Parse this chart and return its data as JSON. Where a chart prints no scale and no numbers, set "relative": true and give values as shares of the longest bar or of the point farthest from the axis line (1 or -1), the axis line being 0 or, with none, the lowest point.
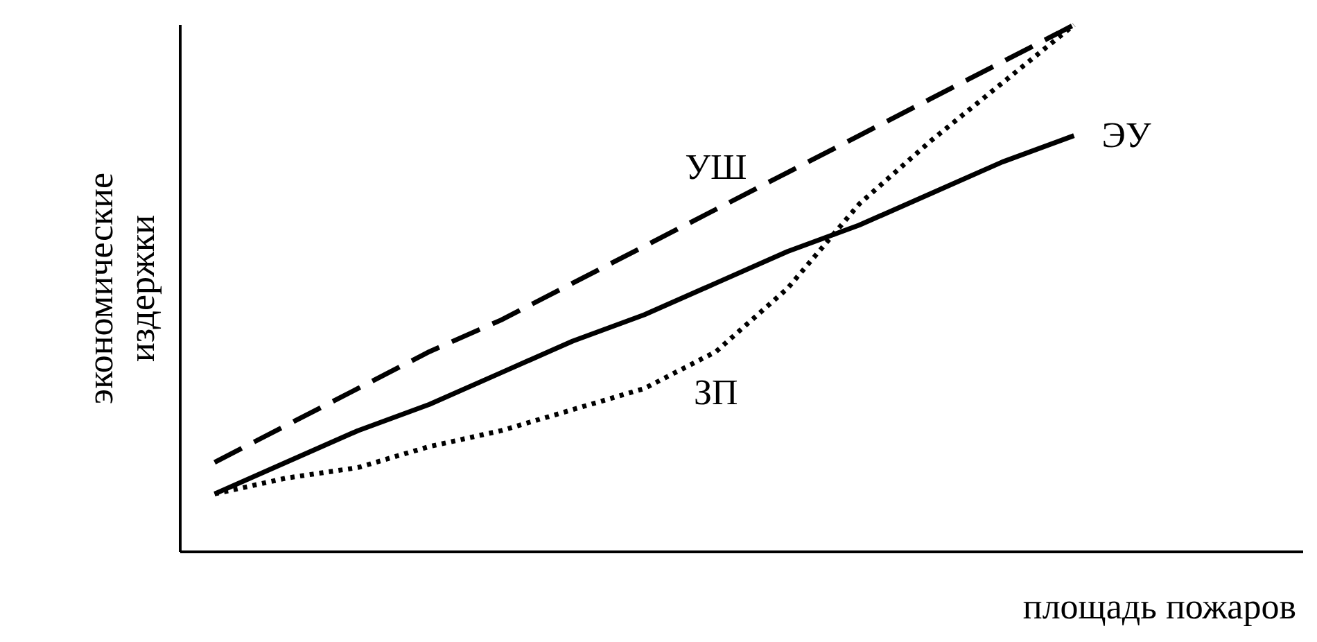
{
  "chart_data": {
    "type": "line",
    "relative": true,
    "xlabel": "площадь пожаров",
    "ylabel": "экономические издержки",
    "categories": [
      null,
      null,
      null,
      null,
      null,
      null,
      null,
      null,
      null,
      null,
      null,
      null,
      null
    ],
    "marker": "none",
    "series": [
      {
        "name": "УШ",
        "color": "#000000",
        "line_style": "dashed",
        "values": [
          0.17,
          0.24,
          0.31,
          0.38,
          0.44,
          0.51,
          0.58,
          0.65,
          0.72,
          0.79,
          0.86,
          0.93,
          1.0
        ]
      },
      {
        "name": "ЭУ",
        "color": "#000000",
        "line_style": "solid",
        "values": [
          0.11,
          0.17,
          0.23,
          0.28,
          0.34,
          0.4,
          0.45,
          0.51,
          0.57,
          0.62,
          0.68,
          0.74,
          0.79
        ]
      },
      {
        "name": "ЗП",
        "color": "#000000",
        "line_style": "dotted",
        "values": [
          0.11,
          0.14,
          0.16,
          0.2,
          0.23,
          0.27,
          0.31,
          0.38,
          0.5,
          0.66,
          0.78,
          0.89,
          1.0
        ]
      }
    ]
  }
}
